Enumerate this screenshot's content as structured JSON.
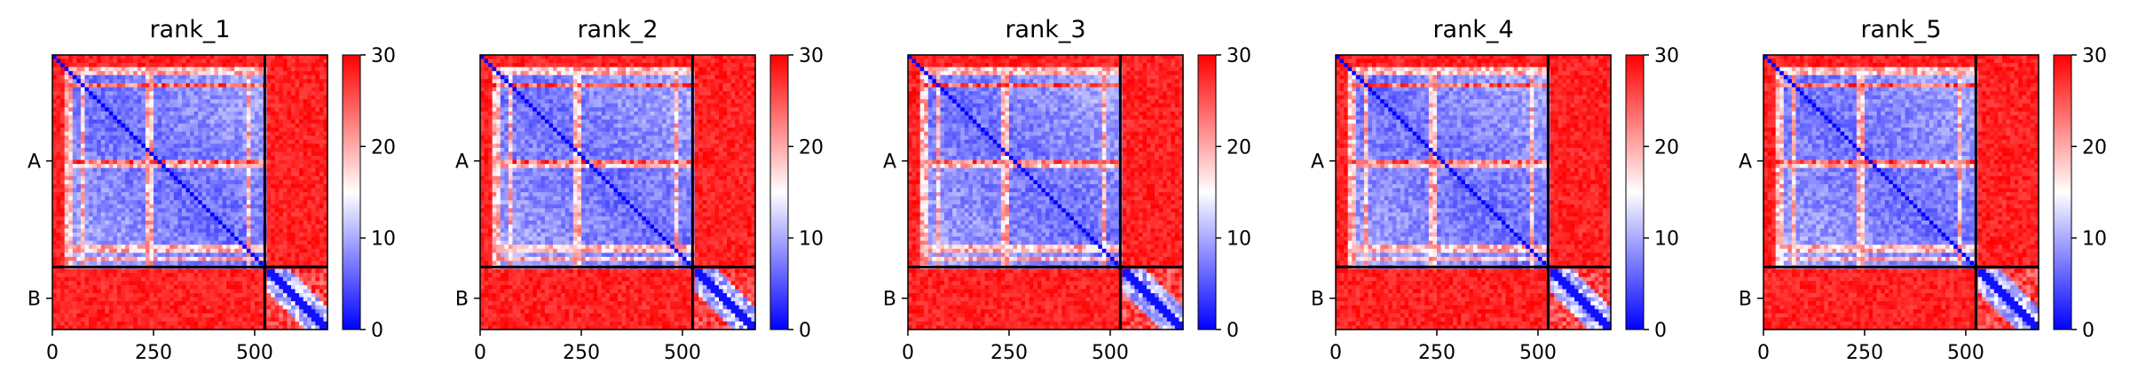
{
  "figure": {
    "colormap": {
      "low": "#0000ff",
      "mid": "#ffffff",
      "high": "#ff0000"
    },
    "chain_labels": [
      "A",
      "B"
    ],
    "chain_boundary_residue": 525,
    "total_residues": 680,
    "x_ticks": [
      "0",
      "250",
      "500"
    ],
    "colorbar_ticks": [
      "0",
      "10",
      "20",
      "30"
    ]
  },
  "chart_data": [
    {
      "type": "heatmap",
      "title": "rank_1",
      "x_ticks": [
        0,
        250,
        500
      ],
      "y_ticks": [
        "A",
        "B"
      ],
      "colorbar_range": [
        0,
        30
      ],
      "colorbar_ticks": [
        0,
        10,
        20,
        30
      ],
      "chain_boundary": 525,
      "n_residues": 680
    },
    {
      "type": "heatmap",
      "title": "rank_2",
      "x_ticks": [
        0,
        250,
        500
      ],
      "y_ticks": [
        "A",
        "B"
      ],
      "colorbar_range": [
        0,
        30
      ],
      "colorbar_ticks": [
        0,
        10,
        20,
        30
      ],
      "chain_boundary": 525,
      "n_residues": 680
    },
    {
      "type": "heatmap",
      "title": "rank_3",
      "x_ticks": [
        0,
        250,
        500
      ],
      "y_ticks": [
        "A",
        "B"
      ],
      "colorbar_range": [
        0,
        30
      ],
      "colorbar_ticks": [
        0,
        10,
        20,
        30
      ],
      "chain_boundary": 525,
      "n_residues": 680
    },
    {
      "type": "heatmap",
      "title": "rank_4",
      "x_ticks": [
        0,
        250,
        500
      ],
      "y_ticks": [
        "A",
        "B"
      ],
      "colorbar_range": [
        0,
        30
      ],
      "colorbar_ticks": [
        0,
        10,
        20,
        30
      ],
      "chain_boundary": 525,
      "n_residues": 680
    },
    {
      "type": "heatmap",
      "title": "rank_5",
      "x_ticks": [
        0,
        250,
        500
      ],
      "y_ticks": [
        "A",
        "B"
      ],
      "colorbar_range": [
        0,
        30
      ],
      "colorbar_ticks": [
        0,
        10,
        20,
        30
      ],
      "chain_boundary": 525,
      "n_residues": 680
    }
  ]
}
